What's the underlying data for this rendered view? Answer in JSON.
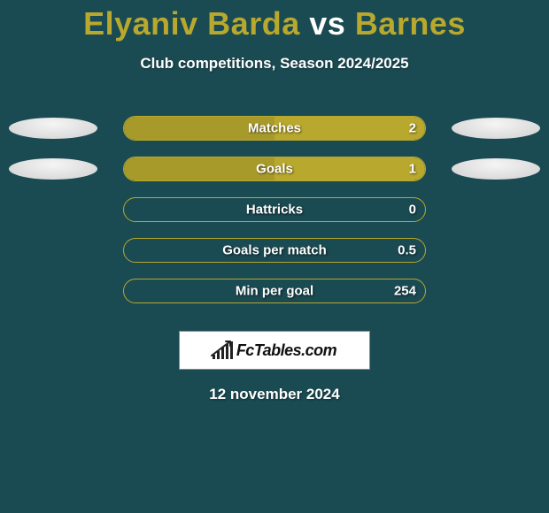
{
  "title": {
    "player1": "Elyaniv Barda",
    "vs": "vs",
    "player2": "Barnes",
    "player1_color": "#b8a82e",
    "vs_color": "#ffffff",
    "player2_color": "#b8a82e"
  },
  "subtitle": "Club competitions, Season 2024/2025",
  "background_color": "#1a4a52",
  "bar": {
    "track_width": 342,
    "track_height": 28,
    "border_color": "#b8a82e",
    "left_fill_color": "#a89a2a",
    "right_fill_color": "#b8a82e"
  },
  "portrait": {
    "left_gradient_top": "#f5f5f5",
    "left_gradient_bottom": "#d0d0d0",
    "right_gradient_top": "#f5f5f5",
    "right_gradient_bottom": "#d0d0d0"
  },
  "stats": [
    {
      "label": "Matches",
      "left_value": "",
      "right_value": "2",
      "left_pct": 50,
      "right_pct": 50,
      "show_left_portrait": true,
      "show_right_portrait": true
    },
    {
      "label": "Goals",
      "left_value": "",
      "right_value": "1",
      "left_pct": 50,
      "right_pct": 50,
      "show_left_portrait": true,
      "show_right_portrait": true
    },
    {
      "label": "Hattricks",
      "left_value": "",
      "right_value": "0",
      "left_pct": 0,
      "right_pct": 0,
      "show_left_portrait": false,
      "show_right_portrait": false
    },
    {
      "label": "Goals per match",
      "left_value": "",
      "right_value": "0.5",
      "left_pct": 0,
      "right_pct": 0,
      "show_left_portrait": false,
      "show_right_portrait": false
    },
    {
      "label": "Min per goal",
      "left_value": "",
      "right_value": "254",
      "left_pct": 0,
      "right_pct": 0,
      "show_left_portrait": false,
      "show_right_portrait": false
    }
  ],
  "logo_text": "FcTables.com",
  "date": "12 november 2024"
}
